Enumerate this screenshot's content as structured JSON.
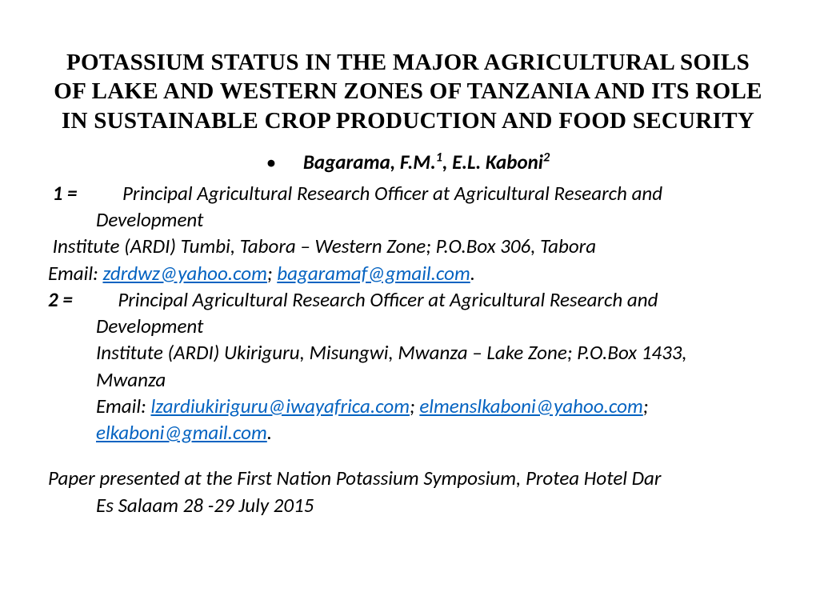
{
  "title": "POTASSIUM STATUS IN THE MAJOR AGRICULTURAL SOILS OF LAKE AND WESTERN ZONES OF TANZANIA AND ITS ROLE IN SUSTAINABLE CROP PRODUCTION AND FOOD SECURITY",
  "bullet": "•",
  "author1_name": "Bagarama, F.M.",
  "author1_sup": "1",
  "author_sep": ", ",
  "author2_name": "E.L. Kaboni",
  "author2_sup": "2",
  "aff1_label": "1 = ",
  "aff1_text_a": "Principal Agricultural Research Officer at Agricultural Research and",
  "aff1_text_b": "Development",
  "aff1_addr": "Institute (ARDI) Tumbi,  Tabora – Western Zone; P.O.Box 306, Tabora",
  "email_label1": "Email:  ",
  "email1a": "zdrdwz@yahoo.com",
  "sep_sc": "; ",
  "email1b": "bagaramaf@gmail.com",
  "period": ".",
  "aff2_label": "2 = ",
  "aff2_text_a": "Principal Agricultural Research Officer at Agricultural Research and",
  "aff2_text_b": "Development",
  "aff2_addr_a": "Institute (ARDI) Ukiriguru, Misungwi, Mwanza – Lake Zone; P.O.Box 1433,",
  "aff2_addr_b": "Mwanza",
  "email_label2": "Email: ",
  "email2a": "lzardiukiriguru@iwayafrica.com",
  "email2b": "elmenslkaboni@yahoo.com",
  "email2c": "elkaboni@gmail.com",
  "conf_a": "Paper presented at the First Nation Potassium Symposium, Protea Hotel Dar",
  "conf_b": "Es Salaam 28 -29 July 2015",
  "colors": {
    "link": "#0563c1",
    "text": "#000000",
    "bg": "#ffffff"
  },
  "fonts": {
    "title_family": "Times New Roman",
    "body_family": "Calibri",
    "title_size_pt": 22,
    "body_size_pt": 19
  }
}
